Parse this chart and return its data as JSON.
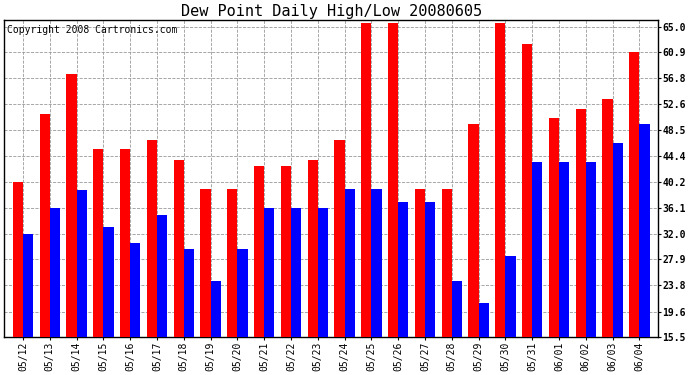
{
  "title": "Dew Point Daily High/Low 20080605",
  "copyright": "Copyright 2008 Cartronics.com",
  "dates": [
    "05/12",
    "05/13",
    "05/14",
    "05/15",
    "05/16",
    "05/17",
    "05/18",
    "05/19",
    "05/20",
    "05/21",
    "05/22",
    "05/23",
    "05/24",
    "05/25",
    "05/26",
    "05/27",
    "05/28",
    "05/29",
    "05/30",
    "05/31",
    "06/01",
    "06/02",
    "06/03",
    "06/04"
  ],
  "highs": [
    40.2,
    51.1,
    57.5,
    45.5,
    45.5,
    47.0,
    43.7,
    39.2,
    39.2,
    42.8,
    42.8,
    43.7,
    47.0,
    65.5,
    65.5,
    39.2,
    39.2,
    49.5,
    65.5,
    62.2,
    50.5,
    51.8,
    53.5,
    60.9
  ],
  "lows": [
    32.0,
    36.1,
    39.0,
    33.0,
    30.5,
    35.0,
    29.5,
    24.5,
    29.5,
    36.1,
    36.1,
    36.1,
    39.2,
    39.2,
    37.0,
    37.0,
    24.5,
    21.0,
    28.5,
    43.5,
    43.5,
    43.5,
    46.5,
    49.5
  ],
  "high_color": "#ff0000",
  "low_color": "#0000ff",
  "bg_color": "#ffffff",
  "plot_bg_color": "#ffffff",
  "grid_color": "#999999",
  "yticks": [
    15.5,
    19.6,
    23.8,
    27.9,
    32.0,
    36.1,
    40.2,
    44.4,
    48.5,
    52.6,
    56.8,
    60.9,
    65.0
  ],
  "ymin": 15.5,
  "ymax": 66.0,
  "title_fontsize": 11,
  "copyright_fontsize": 7,
  "tick_fontsize": 7,
  "bar_width": 0.38
}
